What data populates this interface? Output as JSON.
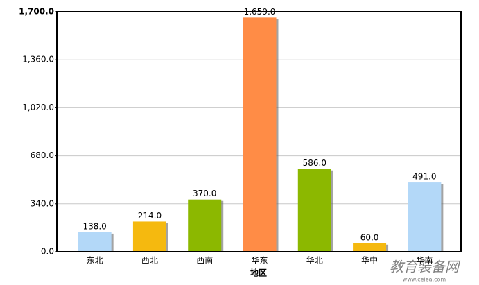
{
  "chart_data": {
    "type": "bar",
    "x_label": "地区",
    "categories": [
      "东北",
      "西北",
      "西南",
      "华东",
      "华北",
      "华中",
      "华南"
    ],
    "values": [
      138,
      214,
      370,
      1659,
      586,
      60,
      491
    ],
    "value_labels": [
      "138.0",
      "214.0",
      "370.0",
      "1,659.0",
      "586.0",
      "60.0",
      "491.0"
    ],
    "colors": [
      "#b3d8f8",
      "#f5b90f",
      "#8cb800",
      "#ff8c46",
      "#8cb800",
      "#f5b90f",
      "#b3d8f8"
    ],
    "ylim": [
      0,
      1700
    ],
    "yticks": [
      {
        "value": 0,
        "label": "0.0"
      },
      {
        "value": 340,
        "label": "340.0"
      },
      {
        "value": 680,
        "label": "680.0"
      },
      {
        "value": 1020,
        "label": "1,020.0"
      },
      {
        "value": 1360,
        "label": "1,360.0"
      },
      {
        "value": 1700,
        "label": "1,700.0"
      }
    ],
    "grid": true,
    "watermark": [
      "教育装备网",
      "www.ceiea.com"
    ]
  }
}
